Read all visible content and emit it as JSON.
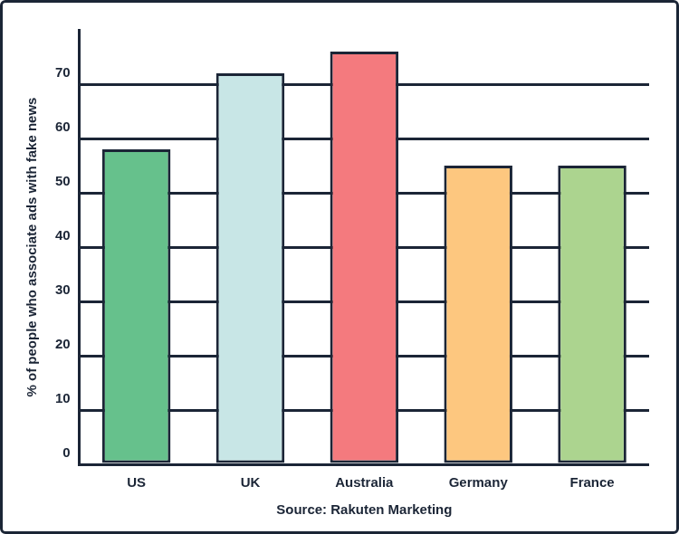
{
  "chart_data": {
    "type": "bar",
    "y_label": "% of people who associate ads with fake news",
    "source": "Source: Rakuten Marketing",
    "categories": [
      "US",
      "UK",
      "Australia",
      "Germany",
      "France"
    ],
    "values": [
      58,
      72,
      76,
      55,
      55
    ],
    "colors": [
      "#66c18c",
      "#c8e6e6",
      "#f47a7e",
      "#fdc77f",
      "#acd48f"
    ],
    "ylim": [
      0,
      80
    ],
    "yticks": [
      0,
      10,
      20,
      30,
      40,
      50,
      60,
      70
    ],
    "grid": true
  }
}
